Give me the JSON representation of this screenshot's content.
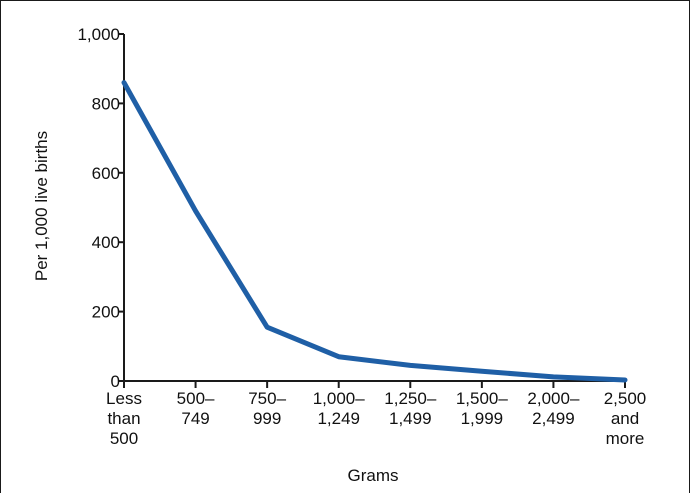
{
  "chart_data": {
    "type": "line",
    "title": "",
    "xlabel": "Grams",
    "ylabel": "Per 1,000 live births",
    "ylim": [
      0,
      1000
    ],
    "yticks": [
      {
        "value": 0,
        "label": "0"
      },
      {
        "value": 200,
        "label": "200"
      },
      {
        "value": 400,
        "label": "400"
      },
      {
        "value": 600,
        "label": "600"
      },
      {
        "value": 800,
        "label": "800"
      },
      {
        "value": 1000,
        "label": "1,000"
      }
    ],
    "categories": [
      [
        "Less",
        "than",
        "500"
      ],
      [
        "500–",
        "749"
      ],
      [
        "750–",
        "999"
      ],
      [
        "1,000–",
        "1,249"
      ],
      [
        "1,250–",
        "1,499"
      ],
      [
        "1,500–",
        "1,999"
      ],
      [
        "2,000–",
        "2,499"
      ],
      [
        "2,500",
        "and",
        "more"
      ]
    ],
    "series": [
      {
        "values": [
          860,
          490,
          155,
          70,
          45,
          28,
          12,
          3
        ],
        "color": "#1f5fa6"
      }
    ],
    "grid": false,
    "axis_color": "#1a1a1a"
  }
}
